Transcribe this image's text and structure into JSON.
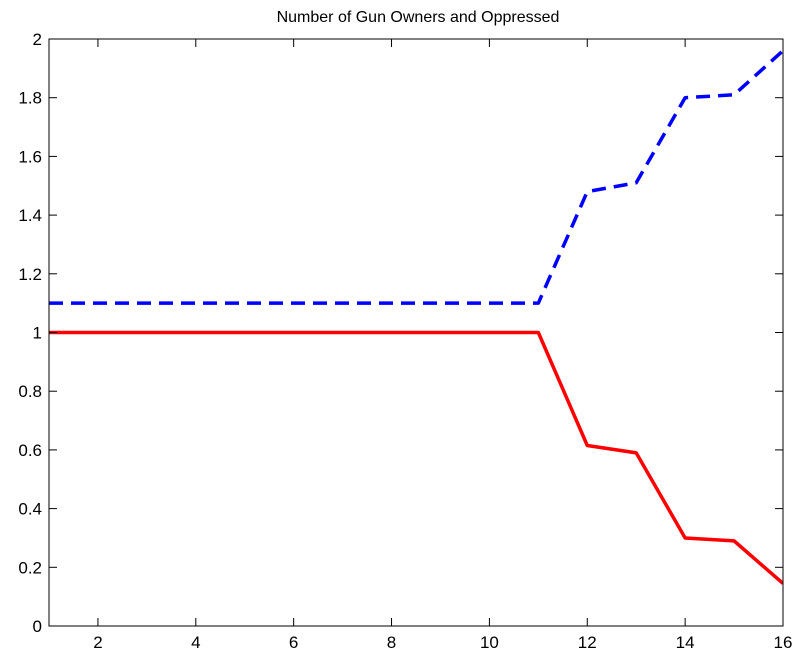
{
  "chart_data": {
    "type": "line",
    "title": "Number of Gun Owners and Oppressed",
    "xlabel": "",
    "ylabel": "",
    "xlim": [
      1,
      16
    ],
    "ylim": [
      0,
      2
    ],
    "xticks": [
      2,
      4,
      6,
      8,
      10,
      12,
      14,
      16
    ],
    "yticks": [
      0,
      0.2,
      0.4,
      0.6,
      0.8,
      1,
      1.2,
      1.4,
      1.6,
      1.8,
      2
    ],
    "grid": false,
    "x": [
      1,
      2,
      3,
      4,
      5,
      6,
      7,
      8,
      9,
      10,
      11,
      12,
      13,
      14,
      15,
      16
    ],
    "series": [
      {
        "color": "#0000ff",
        "style": "dashed",
        "values": [
          1.1,
          1.1,
          1.1,
          1.1,
          1.1,
          1.1,
          1.1,
          1.1,
          1.1,
          1.1,
          1.1,
          1.48,
          1.51,
          1.8,
          1.81,
          1.96
        ]
      },
      {
        "color": "#ff0000",
        "style": "solid",
        "values": [
          1,
          1,
          1,
          1,
          1,
          1,
          1,
          1,
          1,
          1,
          1,
          0.615,
          0.59,
          0.3,
          0.29,
          0.145
        ]
      }
    ]
  }
}
